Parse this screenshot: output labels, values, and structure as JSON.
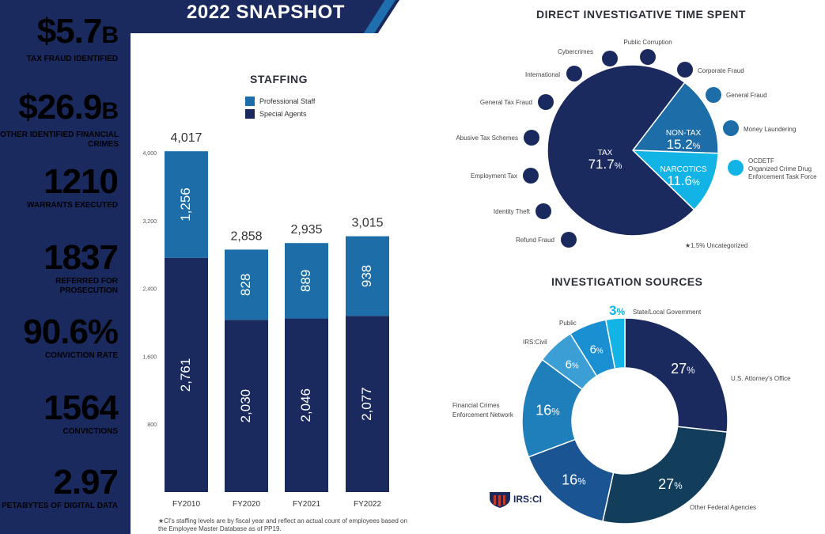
{
  "banner": {
    "title": "2022 SNAPSHOT"
  },
  "stats": [
    {
      "value": "$5.7",
      "suffix": "B",
      "label": "TAX FRAUD IDENTIFIED"
    },
    {
      "value": "$26.9",
      "suffix": "B",
      "label": "OTHER IDENTIFIED FINANCIAL CRIMES"
    },
    {
      "value": "1210",
      "suffix": "",
      "label": "WARRANTS EXECUTED"
    },
    {
      "value": "1837",
      "suffix": "",
      "label": "REFERRED FOR PROSECUTION"
    },
    {
      "value": "90.6%",
      "suffix": "",
      "label": "CONVICTION RATE"
    },
    {
      "value": "1564",
      "suffix": "",
      "label": "CONVICTIONS"
    },
    {
      "value": "2.97",
      "suffix": "",
      "label": "PETABYTES OF DIGITAL DATA"
    }
  ],
  "footnote": "★CI's staffing levels are by fiscal year and reflect an actual count of employees based on the Employee Master Database as of PP19.",
  "logo_text": "IRS:CI",
  "colors": {
    "navy": "#1b2a5e",
    "mid_blue": "#1d6ea8",
    "cyan": "#12b4e6",
    "dark_teal": "#123e5c"
  },
  "chart_data": [
    {
      "type": "bar",
      "title": "STAFFING",
      "categories": [
        "FY2010",
        "FY2020",
        "FY2021",
        "FY2022"
      ],
      "series": [
        {
          "name": "Special Agents",
          "values": [
            2761,
            2030,
            2046,
            2077
          ],
          "labels": [
            "2,761",
            "2,030",
            "2,046",
            "2,077"
          ],
          "color": "#1b2a5e"
        },
        {
          "name": "Professional Staff",
          "values": [
            1256,
            828,
            889,
            938
          ],
          "labels": [
            "1,256",
            "828",
            "889",
            "938"
          ],
          "color": "#1d6ea8"
        }
      ],
      "totals": [
        "4,017",
        "2,858",
        "2,935",
        "3,015"
      ],
      "yticks": [
        {
          "v": 800,
          "label": "800"
        },
        {
          "v": 1600,
          "label": "1,600"
        },
        {
          "v": 2400,
          "label": "2,400"
        },
        {
          "v": 3200,
          "label": "3,200"
        },
        {
          "v": 4000,
          "label": "4,000"
        }
      ],
      "ylim": [
        0,
        4000
      ]
    },
    {
      "type": "pie",
      "title": "DIRECT INVESTIGATIVE TIME SPENT",
      "slices": [
        {
          "name": "TAX",
          "value": 71.7,
          "value_label": "71.7",
          "color": "#1b2a5e"
        },
        {
          "name": "NON-TAX",
          "value": 15.2,
          "value_label": "15.2",
          "color": "#1d6ea8"
        },
        {
          "name": "NARCOTICS",
          "value": 11.6,
          "value_label": "11.6",
          "color": "#12b4e6"
        }
      ],
      "categories": [
        "Cybercrimes",
        "Public Corruption",
        "International",
        "Corporate Fraud",
        "General Fraud",
        "General Tax Fraud",
        "Money Laundering",
        "Abusive Tax Schemes",
        "OCDETF Organized Crime Drug Enforcement Task Force",
        "Employment Tax",
        "Identity Theft",
        "Refund Fraud"
      ],
      "note": "★1.5% Uncategorized"
    },
    {
      "type": "pie",
      "title": "INVESTIGATION SOURCES",
      "slices": [
        {
          "name": "U.S. Attorney's Office",
          "value": 27,
          "color": "#1b2a5e"
        },
        {
          "name": "Other Federal Agencies",
          "value": 27,
          "color": "#123e5c"
        },
        {
          "name": "",
          "value": 16,
          "color": "#1a5493"
        },
        {
          "name": "Financial Crimes Enforcement Network",
          "value": 16,
          "color": "#1f7fbb"
        },
        {
          "name": "IRS:Civil",
          "value": 6,
          "color": "#3b9fd6"
        },
        {
          "name": "Public",
          "value": 6,
          "color": "#1a8fd1"
        },
        {
          "name": "State/Local Government",
          "value": 3,
          "color": "#12b4e6"
        }
      ]
    }
  ]
}
